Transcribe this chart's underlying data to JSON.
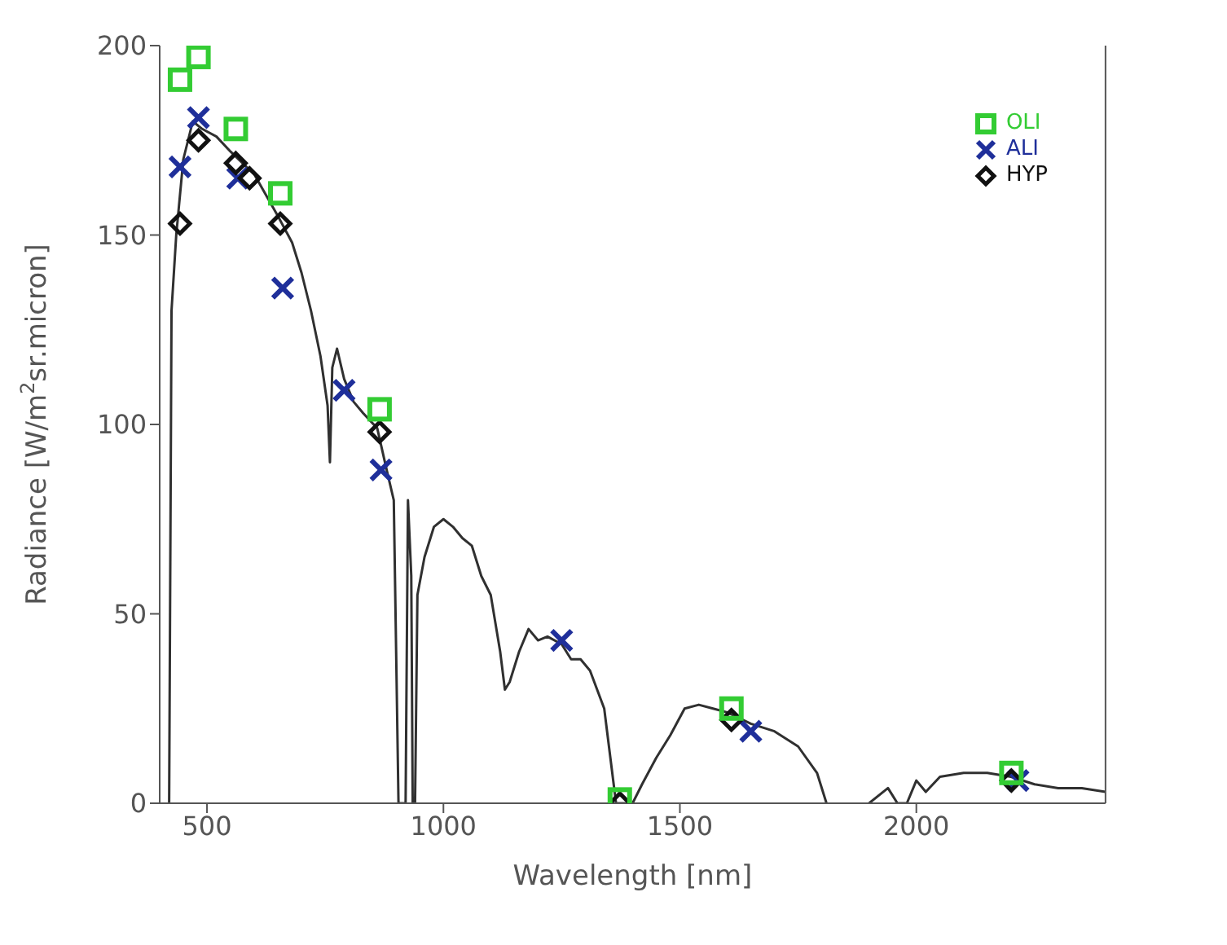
{
  "chart_data": {
    "type": "scatter",
    "xlabel": "Wavelength [nm]",
    "ylabel": "Radiance [W/m$^{2}$sr.micron]",
    "xlim": [
      400,
      2400
    ],
    "xticks": [
      500,
      1000,
      1500,
      2000
    ],
    "ylim": [
      0,
      200
    ],
    "yticks": [
      0,
      50,
      100,
      150,
      200
    ],
    "grid": false,
    "legend": "top right",
    "series": [
      {
        "type": "line",
        "color": "#303030",
        "marker": "none",
        "line_style": "solid",
        "x": [
          420,
          425,
          435,
          450,
          470,
          490,
          520,
          550,
          600,
          650,
          680,
          700,
          720,
          740,
          755,
          760,
          765,
          775,
          790,
          810,
          830,
          860,
          880,
          895,
          900,
          905,
          920,
          925,
          932,
          935,
          940,
          945,
          960,
          980,
          1000,
          1020,
          1040,
          1060,
          1080,
          1100,
          1120,
          1130,
          1140,
          1160,
          1180,
          1200,
          1220,
          1250,
          1270,
          1290,
          1310,
          1340,
          1355,
          1365,
          1400,
          1420,
          1450,
          1480,
          1510,
          1540,
          1570,
          1600,
          1650,
          1700,
          1750,
          1790,
          1810,
          1860,
          1900,
          1940,
          1960,
          1980,
          2000,
          2020,
          2050,
          2100,
          2150,
          2200,
          2250,
          2300,
          2350,
          2400
        ],
        "values": [
          0,
          130,
          150,
          170,
          180,
          178,
          176,
          172,
          166,
          155,
          148,
          140,
          130,
          118,
          105,
          90,
          115,
          120,
          112,
          106,
          103,
          99,
          88,
          80,
          40,
          0,
          0,
          80,
          60,
          0,
          0,
          55,
          65,
          73,
          75,
          73,
          70,
          68,
          60,
          55,
          40,
          30,
          32,
          40,
          46,
          43,
          44,
          42,
          38,
          38,
          35,
          25,
          10,
          0,
          0,
          5,
          12,
          18,
          25,
          26,
          25,
          24,
          21,
          19,
          15,
          8,
          0,
          null,
          0,
          4,
          0,
          0,
          6,
          3,
          7,
          8,
          8,
          7,
          5,
          4,
          4,
          3
        ]
      },
      {
        "name": "OLI",
        "color": "#33cc33",
        "marker": "square",
        "x": [
          443,
          482,
          561,
          655,
          865,
          1373,
          1609,
          2201
        ],
        "values": [
          191,
          197,
          178,
          161,
          104,
          1,
          25,
          8
        ]
      },
      {
        "name": "ALI",
        "color": "#1f2f9a",
        "marker": "cross",
        "x": [
          443,
          482,
          565,
          660,
          790,
          868,
          1250,
          1650,
          2215
        ],
        "values": [
          168,
          181,
          165,
          136,
          109,
          88,
          43,
          19,
          6
        ]
      },
      {
        "name": "HYP",
        "color": "#111111",
        "marker": "diamond",
        "x": [
          443,
          482,
          561,
          590,
          655,
          865,
          1373,
          1609,
          2201
        ],
        "values": [
          153,
          175,
          169,
          165,
          153,
          98,
          0,
          22,
          6
        ]
      }
    ]
  }
}
